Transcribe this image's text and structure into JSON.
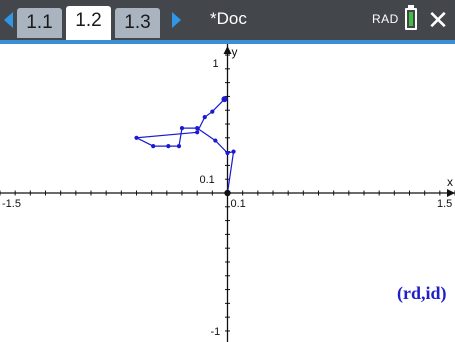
{
  "topbar": {
    "tabs": [
      {
        "label": "1.1",
        "active": false
      },
      {
        "label": "1.2",
        "active": true
      },
      {
        "label": "1.3",
        "active": false
      }
    ],
    "doc_title": "*Doc",
    "angle_mode": "RAD",
    "battery_status": "charged",
    "close_icon": "close-icon",
    "prev_icon": "triangle-left-icon",
    "next_icon": "triangle-right-icon"
  },
  "graph": {
    "x_axis_label": "x",
    "y_axis_label": "y",
    "x_min_label": "-1.5",
    "x_max_label": "1.5",
    "x_scale_label": "0.1",
    "y_max_label": "1",
    "y_min_label": "-1",
    "y_scale_label": "0.1",
    "plot_label": "(rd,id)",
    "plot_color": "#1a1ad0",
    "axis_color": "#111111",
    "x_range": [
      -1.5,
      1.5
    ],
    "y_range": [
      -1.08,
      1.08
    ],
    "x_tick_step": 0.1,
    "y_tick_step": 0.1,
    "points": [
      [
        -0.02,
        0.68
      ],
      [
        -0.1,
        0.59
      ],
      [
        -0.15,
        0.55
      ],
      [
        -0.2,
        0.44
      ],
      [
        -0.6,
        0.4
      ],
      [
        -0.49,
        0.34
      ],
      [
        -0.39,
        0.34
      ],
      [
        -0.32,
        0.34
      ],
      [
        -0.3,
        0.47
      ],
      [
        -0.2,
        0.47
      ],
      [
        -0.08,
        0.38
      ],
      [
        0.0,
        0.29
      ],
      [
        0.04,
        0.3
      ],
      [
        0.0,
        0.0
      ]
    ]
  }
}
